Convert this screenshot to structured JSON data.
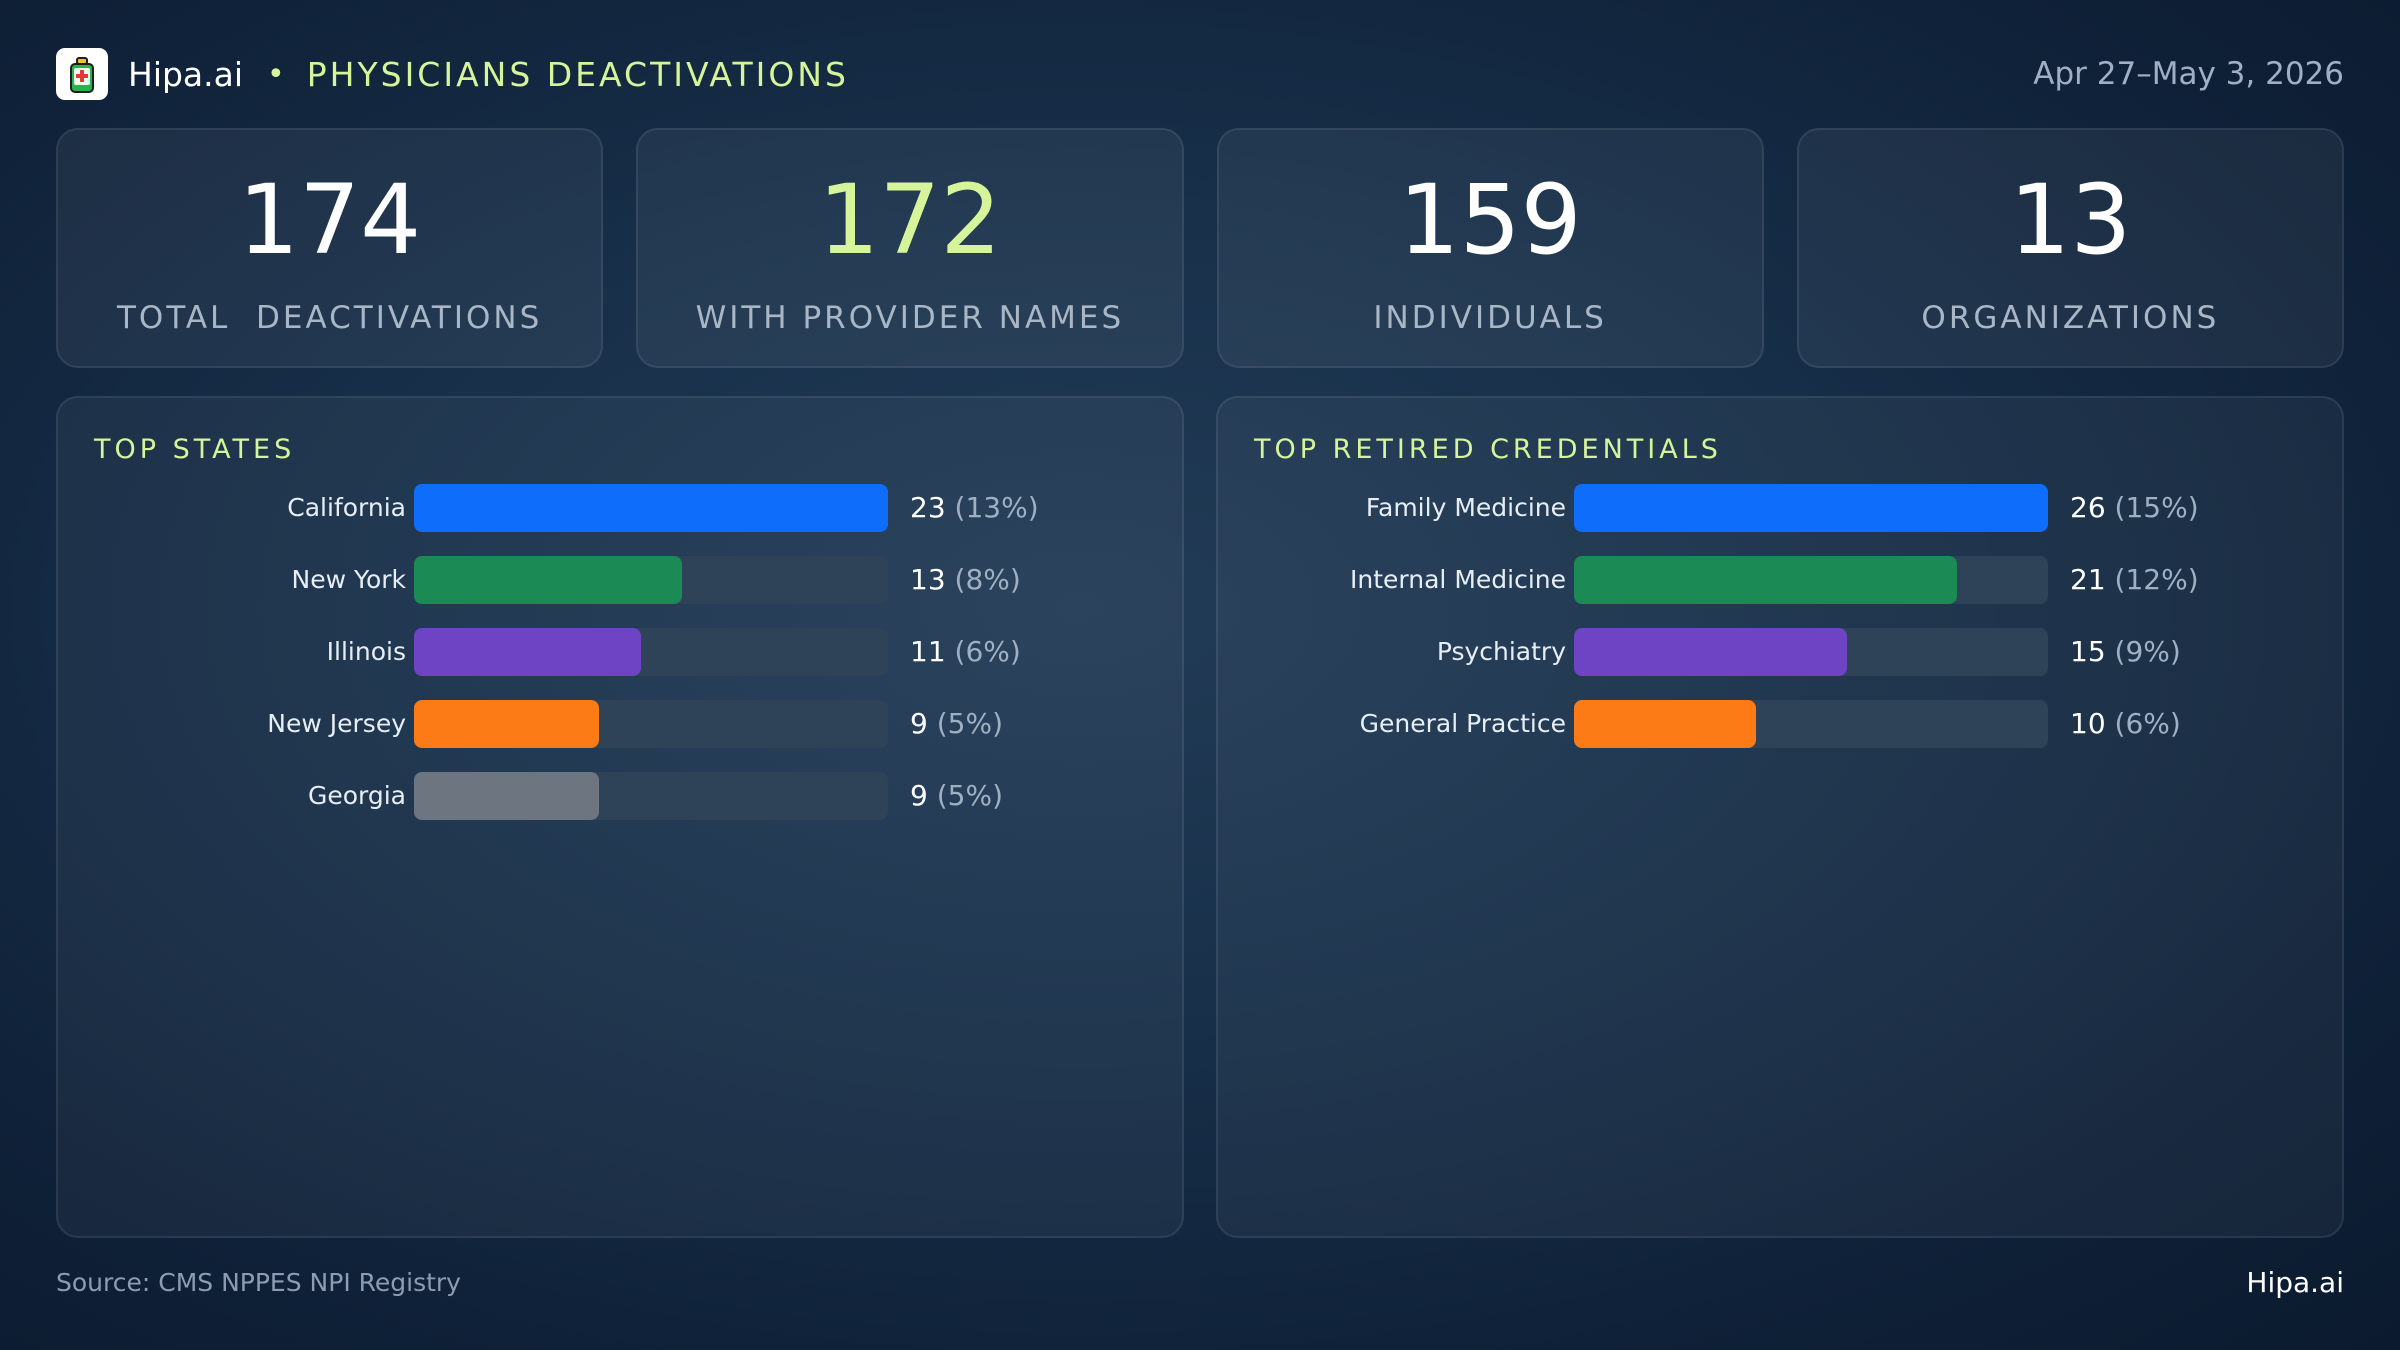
{
  "header": {
    "brand": "Hipa.ai",
    "separator": "•",
    "title": "PHYSICIANS DEACTIVATIONS",
    "date_range": "Apr 27–May 3, 2026",
    "logo_icon": "phone-cross-icon"
  },
  "kpis": [
    {
      "value": "174",
      "label": "TOTAL  DEACTIVATIONS",
      "accent": false
    },
    {
      "value": "172",
      "label": "WITH PROVIDER NAMES",
      "accent": true
    },
    {
      "value": "159",
      "label": "INDIVIDUALS",
      "accent": false
    },
    {
      "value": "13",
      "label": "ORGANIZATIONS",
      "accent": false
    }
  ],
  "colors": {
    "accent": "#d6f59a",
    "blue": "#0f6dfb",
    "green": "#1b8a55",
    "purple": "#6f44c4",
    "orange": "#fd7b17",
    "gray": "#6c7580",
    "track": "#2e4258"
  },
  "chart_data": [
    {
      "type": "bar",
      "title": "TOP STATES",
      "orientation": "horizontal",
      "categories": [
        "California",
        "New York",
        "Illinois",
        "New Jersey",
        "Georgia"
      ],
      "values": [
        23,
        13,
        11,
        9,
        9
      ],
      "percents": [
        "(13%)",
        "(8%)",
        "(6%)",
        "(5%)",
        "(5%)"
      ],
      "bar_colors": [
        "#0f6dfb",
        "#1b8a55",
        "#6f44c4",
        "#fd7b17",
        "#6c7580"
      ],
      "xlim": [
        0,
        23
      ]
    },
    {
      "type": "bar",
      "title": "TOP RETIRED CREDENTIALS",
      "orientation": "horizontal",
      "categories": [
        "Family Medicine",
        "Internal Medicine",
        "Psychiatry",
        "General Practice"
      ],
      "values": [
        26,
        21,
        15,
        10
      ],
      "percents": [
        "(15%)",
        "(12%)",
        "(9%)",
        "(6%)"
      ],
      "bar_colors": [
        "#0f6dfb",
        "#1b8a55",
        "#6f44c4",
        "#fd7b17"
      ],
      "xlim": [
        0,
        26
      ]
    }
  ],
  "footer": {
    "source": "Source: CMS NPPES NPI Registry",
    "brand": "Hipa.ai"
  }
}
